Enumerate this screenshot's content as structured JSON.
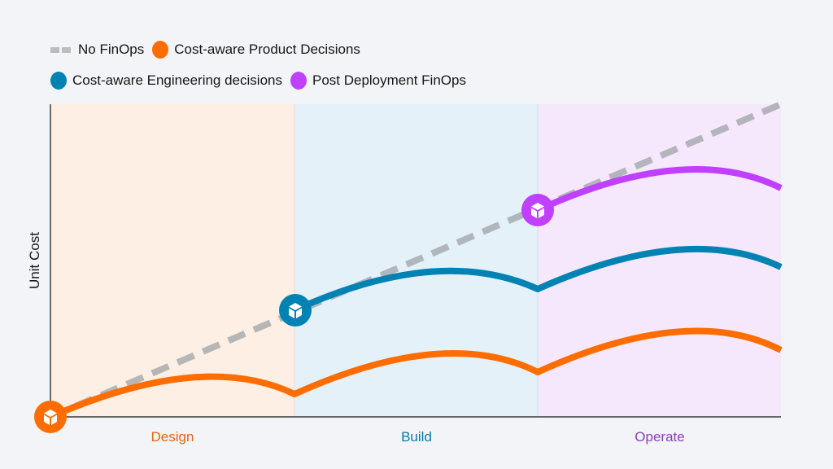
{
  "legend": [
    {
      "label": "No FinOps",
      "color": "#b4b8bd",
      "style": "dashed"
    },
    {
      "label": "Cost-aware Product Decisions",
      "color": "#ff6d00"
    },
    {
      "label": "Cost-aware Engineering decisions",
      "color": "#0083b3"
    },
    {
      "label": "Post Deployment FinOps",
      "color": "#c040ff"
    }
  ],
  "y_axis_label": "Unit Cost",
  "phases": [
    {
      "label": "Design",
      "color": "#e8650c",
      "background": "#fdefe3"
    },
    {
      "label": "Build",
      "color": "#0a77a8",
      "background": "#e4f1f8"
    },
    {
      "label": "Operate",
      "color": "#8f3cc0",
      "background": "#f6e8fc"
    }
  ],
  "milestone_icon": "cube-icon"
}
